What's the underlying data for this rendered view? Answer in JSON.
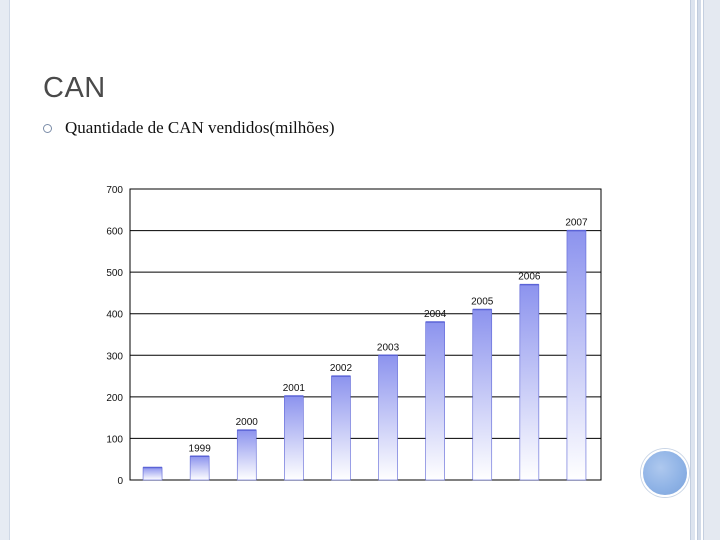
{
  "slide": {
    "title": "CAN",
    "bullet": "Quantidade de CAN vendidos(milhões)"
  },
  "colors": {
    "bar_top": "#8c93ee",
    "bar_bottom": "#ffffff",
    "bar_edge": "#5b63d6",
    "grid": "#000000"
  },
  "chart_data": {
    "type": "bar",
    "title": "",
    "xlabel": "",
    "ylabel": "",
    "grid": true,
    "ylim": [
      0,
      700
    ],
    "yticks": [
      0,
      100,
      200,
      300,
      400,
      500,
      600,
      700
    ],
    "categories": [
      "",
      "1999",
      "2000",
      "2001",
      "2002",
      "2003",
      "2004",
      "2005",
      "2006",
      "2007"
    ],
    "values": [
      30,
      57,
      120,
      202,
      250,
      300,
      380,
      410,
      470,
      600
    ]
  }
}
